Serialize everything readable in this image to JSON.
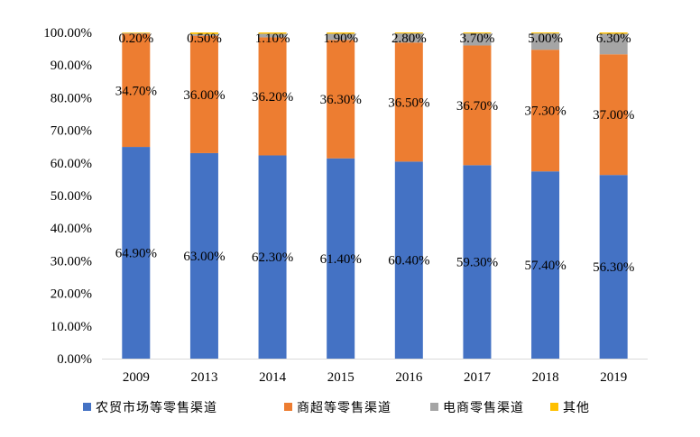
{
  "chart_data": {
    "type": "bar",
    "stacked": true,
    "categories": [
      "2009",
      "2013",
      "2014",
      "2015",
      "2016",
      "2017",
      "2018",
      "2019"
    ],
    "series": [
      {
        "name": "农贸市场等零售渠道",
        "color": "#4472C4",
        "values": [
          64.9,
          63.0,
          62.3,
          61.4,
          60.4,
          59.3,
          57.4,
          56.3
        ],
        "labels": [
          "64.90%",
          "63.00%",
          "62.30%",
          "61.40%",
          "60.40%",
          "59.30%",
          "57.40%",
          "56.30%"
        ]
      },
      {
        "name": "商超等零售渠道",
        "color": "#ED7D31",
        "values": [
          34.7,
          36.0,
          36.2,
          36.3,
          36.5,
          36.7,
          37.3,
          37.0
        ],
        "labels": [
          "34.70%",
          "36.00%",
          "36.20%",
          "36.30%",
          "36.50%",
          "36.70%",
          "37.30%",
          "37.00%"
        ]
      },
      {
        "name": "电商零售渠道",
        "color": "#A5A5A5",
        "values": [
          0.2,
          0.5,
          1.1,
          1.9,
          2.8,
          3.7,
          5.0,
          6.3
        ],
        "labels": [
          "0.20%",
          "0.50%",
          "1.10%",
          "1.90%",
          "2.80%",
          "3.70%",
          "5.00%",
          "6.30%"
        ]
      },
      {
        "name": "其他",
        "color": "#FFC000",
        "values": [
          0.2,
          0.5,
          0.4,
          0.4,
          0.3,
          0.3,
          0.3,
          0.4
        ],
        "labels": []
      }
    ],
    "ylim": [
      0,
      100
    ],
    "yticks": [
      "0.00%",
      "10.00%",
      "20.00%",
      "30.00%",
      "40.00%",
      "50.00%",
      "60.00%",
      "70.00%",
      "80.00%",
      "90.00%",
      "100.00%"
    ],
    "grid": false,
    "legend_position": "bottom",
    "title": "",
    "xlabel": "",
    "ylabel": ""
  }
}
